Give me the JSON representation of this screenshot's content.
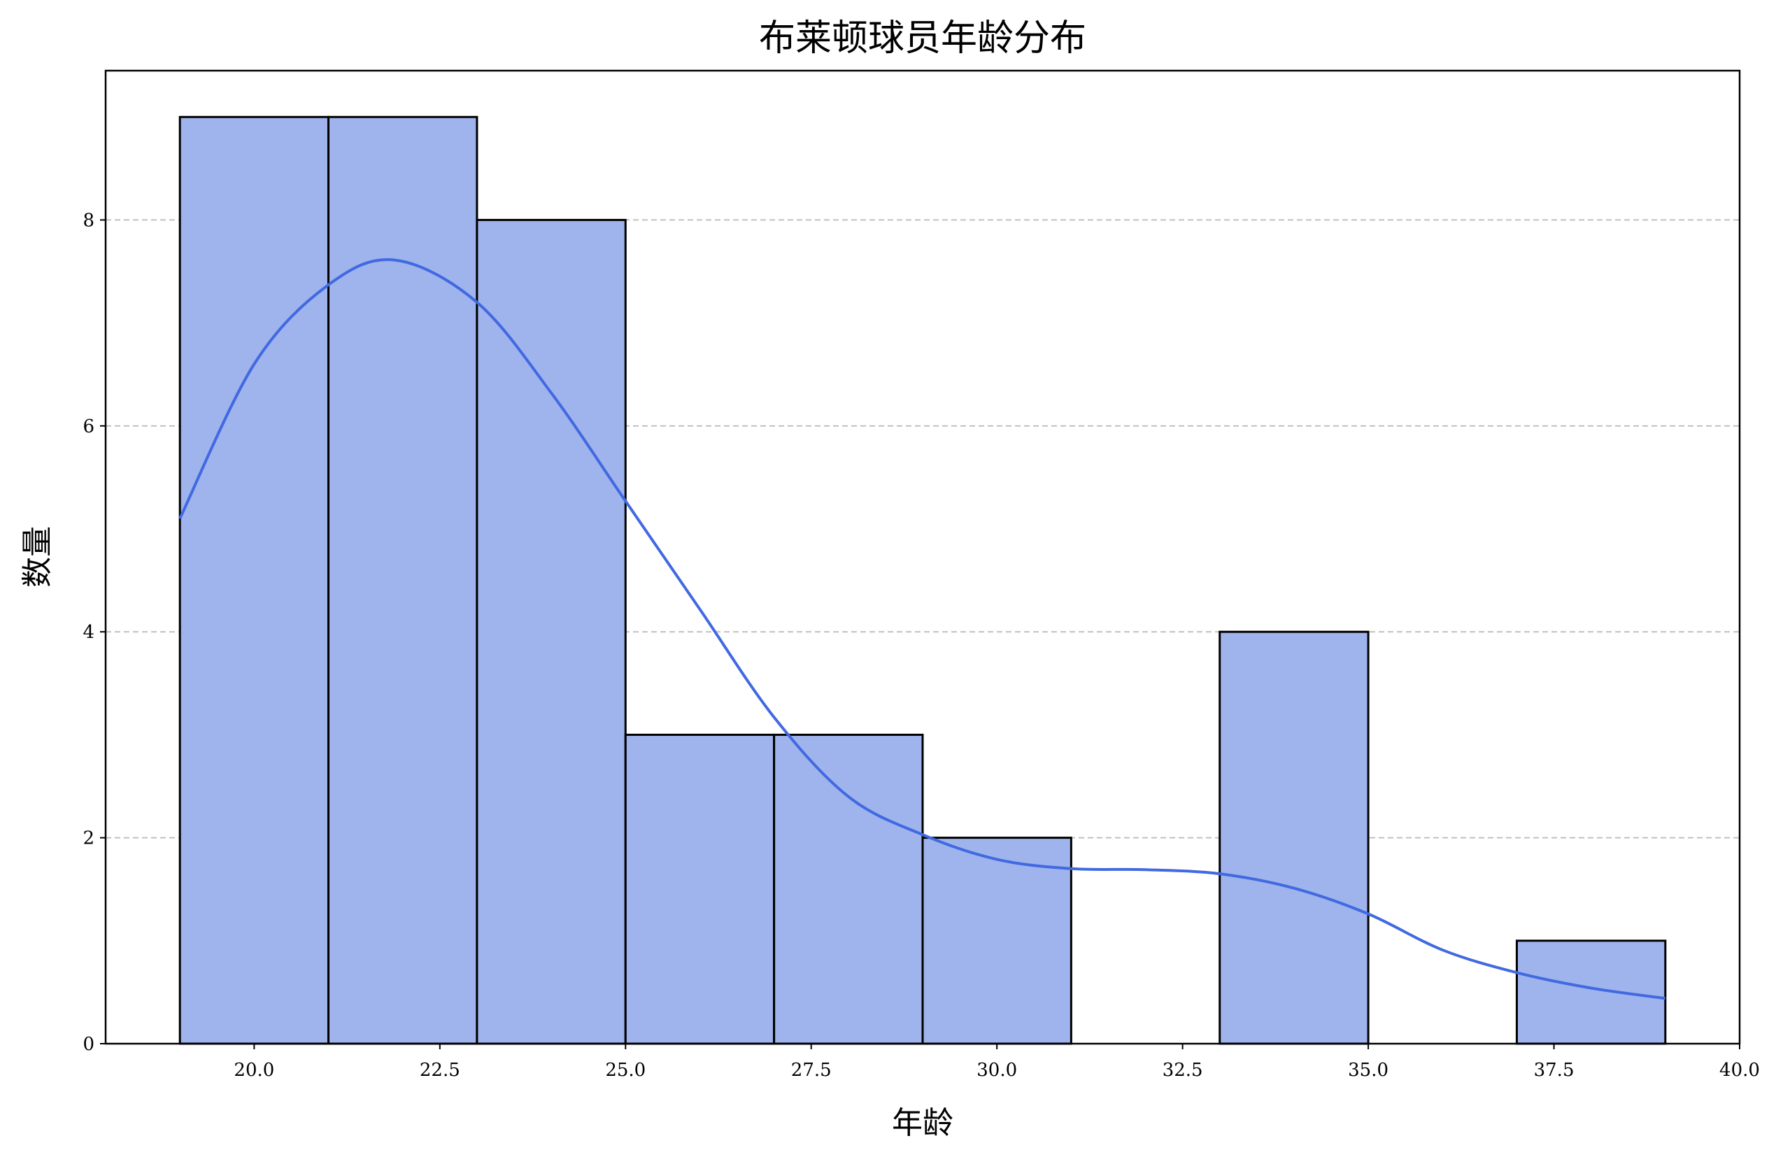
{
  "chart_data": {
    "type": "bar",
    "subtype": "histogram-with-kde",
    "title": "布莱顿球员年龄分布",
    "xlabel": "年龄",
    "ylabel": "数量",
    "xlim": [
      18,
      40
    ],
    "ylim": [
      0,
      9.45
    ],
    "xticks": [
      "20.0",
      "22.5",
      "25.0",
      "27.5",
      "30.0",
      "32.5",
      "35.0",
      "37.5",
      "40.0"
    ],
    "yticks": [
      "0",
      "2",
      "4",
      "6",
      "8"
    ],
    "grid": "y-dashed",
    "bin_edges": [
      19,
      21,
      23,
      25,
      27,
      29,
      31,
      33,
      35,
      37,
      39
    ],
    "values": [
      9,
      9,
      8,
      3,
      3,
      2,
      0,
      4,
      0,
      1
    ],
    "kde": {
      "x": [
        19,
        20,
        21,
        21.9,
        23,
        24,
        25,
        26,
        27,
        28,
        29,
        30,
        31,
        32,
        33,
        34,
        35,
        36,
        37,
        38,
        39
      ],
      "y": [
        5.1,
        6.6,
        7.37,
        7.61,
        7.2,
        6.32,
        5.27,
        4.22,
        3.17,
        2.4,
        2.03,
        1.79,
        1.7,
        1.69,
        1.65,
        1.51,
        1.26,
        0.91,
        0.69,
        0.54,
        0.44
      ]
    },
    "colors": {
      "bar_fill": "#9fb3ec",
      "bar_edge": "#000000",
      "kde": "#4169e1",
      "grid": "#c0c0c0"
    }
  }
}
